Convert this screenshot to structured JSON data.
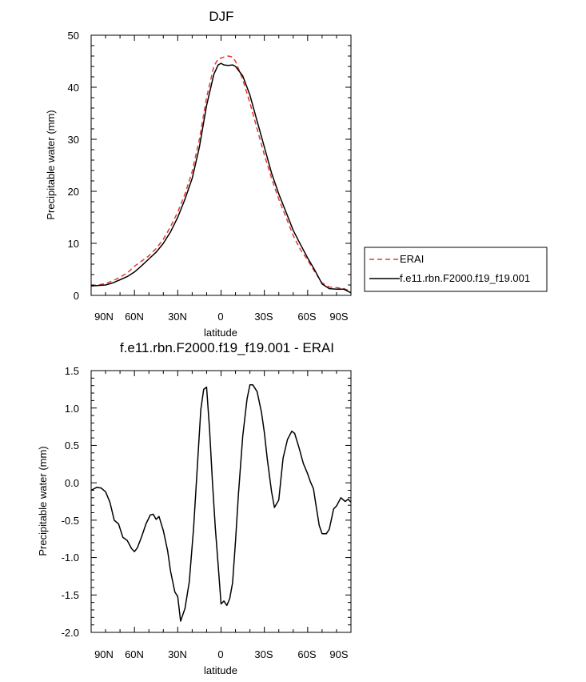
{
  "chart_data": [
    {
      "type": "line",
      "title": "DJF",
      "xlabel": "latitude",
      "ylabel": "Precipitable water (mm)",
      "xlim": [
        90,
        -90
      ],
      "ylim": [
        0,
        50
      ],
      "xticks": [
        {
          "value": 90,
          "label": "90N"
        },
        {
          "value": 60,
          "label": "60N"
        },
        {
          "value": 30,
          "label": "30N"
        },
        {
          "value": 0,
          "label": "0"
        },
        {
          "value": -30,
          "label": "30S"
        },
        {
          "value": -60,
          "label": "60S"
        },
        {
          "value": -90,
          "label": "90S"
        }
      ],
      "yticks": [
        {
          "value": 0,
          "label": "0"
        },
        {
          "value": 10,
          "label": "10"
        },
        {
          "value": 20,
          "label": "20"
        },
        {
          "value": 30,
          "label": "30"
        },
        {
          "value": 40,
          "label": "40"
        },
        {
          "value": 50,
          "label": "50"
        }
      ],
      "legend": {
        "placement": "right",
        "entries": [
          "ERAI",
          "f.e11.rbn.F2000.f19_f19.001"
        ]
      },
      "series": [
        {
          "name": "ERAI",
          "color": "#e8352e",
          "dash": "dashed",
          "x": [
            90,
            85,
            80,
            75,
            70,
            65,
            60,
            55,
            50,
            45,
            40,
            35,
            30,
            25,
            20,
            15,
            10,
            5,
            2,
            0,
            -2,
            -5,
            -8,
            -10,
            -15,
            -20,
            -25,
            -30,
            -35,
            -40,
            -45,
            -50,
            -55,
            -60,
            -65,
            -70,
            -75,
            -80,
            -85,
            -90
          ],
          "y": [
            1.9,
            2.0,
            2.3,
            2.8,
            3.5,
            4.3,
            5.6,
            6.6,
            7.6,
            9.0,
            10.8,
            13.2,
            16.0,
            19.5,
            23.8,
            30.0,
            38.0,
            44.0,
            45.5,
            45.6,
            45.8,
            46.0,
            45.8,
            45.0,
            41.5,
            37.0,
            32.0,
            27.0,
            22.5,
            18.5,
            15.0,
            11.5,
            8.8,
            6.8,
            4.5,
            2.4,
            1.6,
            1.5,
            1.3,
            0.8
          ]
        },
        {
          "name": "f.e11.rbn.F2000.f19_f19.001",
          "color": "#000000",
          "dash": "solid",
          "x": [
            90,
            85,
            80,
            75,
            70,
            65,
            60,
            55,
            50,
            45,
            40,
            35,
            30,
            25,
            20,
            15,
            10,
            5,
            2,
            0,
            -2,
            -5,
            -8,
            -10,
            -15,
            -20,
            -25,
            -30,
            -35,
            -40,
            -45,
            -50,
            -55,
            -60,
            -65,
            -70,
            -75,
            -80,
            -85,
            -90
          ],
          "y": [
            1.8,
            1.9,
            2.0,
            2.4,
            3.0,
            3.6,
            4.5,
            5.7,
            7.0,
            8.3,
            10.0,
            12.2,
            15.0,
            18.5,
            22.5,
            28.5,
            36.5,
            42.5,
            44.3,
            44.6,
            44.3,
            44.2,
            44.3,
            44.0,
            42.2,
            38.5,
            33.5,
            28.5,
            23.5,
            19.5,
            16.0,
            12.5,
            9.8,
            7.2,
            4.8,
            2.2,
            1.3,
            1.2,
            1.2,
            0.5
          ]
        }
      ]
    },
    {
      "type": "line",
      "title": "f.e11.rbn.F2000.f19_f19.001 - ERAI",
      "xlabel": "latitude",
      "ylabel": "Precipitable water (mm)",
      "xlim": [
        90,
        -90
      ],
      "ylim": [
        -2.0,
        1.5
      ],
      "xticks": [
        {
          "value": 90,
          "label": "90N"
        },
        {
          "value": 60,
          "label": "60N"
        },
        {
          "value": 30,
          "label": "30N"
        },
        {
          "value": 0,
          "label": "0"
        },
        {
          "value": -30,
          "label": "30S"
        },
        {
          "value": -60,
          "label": "60S"
        },
        {
          "value": -90,
          "label": "90S"
        }
      ],
      "yticks": [
        {
          "value": -2.0,
          "label": "-2.0"
        },
        {
          "value": -1.5,
          "label": "-1.5"
        },
        {
          "value": -1.0,
          "label": "-1.0"
        },
        {
          "value": -0.5,
          "label": "-0.5"
        },
        {
          "value": 0.0,
          "label": "0.0"
        },
        {
          "value": 0.5,
          "label": "0.5"
        },
        {
          "value": 1.0,
          "label": "1.0"
        },
        {
          "value": 1.5,
          "label": "1.5"
        }
      ],
      "series": [
        {
          "name": "f.e11.rbn.F2000.f19_f19.001 - ERAI",
          "color": "#000000",
          "dash": "solid",
          "x": [
            90,
            86,
            83,
            80,
            77,
            74,
            71,
            68,
            65,
            62,
            60,
            58,
            55,
            52,
            49,
            47,
            45,
            43,
            40,
            37,
            35,
            32,
            30,
            28,
            25,
            22,
            19,
            16,
            14,
            12,
            10,
            8,
            6,
            4,
            2,
            0,
            -2,
            -4,
            -6,
            -8,
            -10,
            -12,
            -15,
            -18,
            -20,
            -22,
            -25,
            -28,
            -30,
            -32,
            -35,
            -37,
            -40,
            -43,
            -46,
            -49,
            -51,
            -54,
            -57,
            -60,
            -62,
            -64,
            -66,
            -68,
            -70,
            -73,
            -75,
            -78,
            -80,
            -83,
            -86,
            -88,
            -90
          ],
          "y": [
            -0.1,
            -0.06,
            -0.07,
            -0.12,
            -0.26,
            -0.5,
            -0.55,
            -0.73,
            -0.77,
            -0.88,
            -0.92,
            -0.87,
            -0.72,
            -0.55,
            -0.43,
            -0.42,
            -0.49,
            -0.45,
            -0.64,
            -0.91,
            -1.18,
            -1.46,
            -1.52,
            -1.85,
            -1.68,
            -1.32,
            -0.6,
            0.35,
            0.98,
            1.25,
            1.28,
            0.72,
            0.02,
            -0.6,
            -1.1,
            -1.62,
            -1.58,
            -1.64,
            -1.55,
            -1.34,
            -0.78,
            -0.16,
            0.62,
            1.12,
            1.31,
            1.31,
            1.22,
            0.94,
            0.67,
            0.32,
            -0.12,
            -0.33,
            -0.23,
            0.33,
            0.58,
            0.69,
            0.66,
            0.47,
            0.26,
            0.12,
            0.01,
            -0.08,
            -0.33,
            -0.57,
            -0.68,
            -0.68,
            -0.62,
            -0.35,
            -0.31,
            -0.2,
            -0.25,
            -0.22,
            -0.26
          ]
        }
      ]
    }
  ]
}
